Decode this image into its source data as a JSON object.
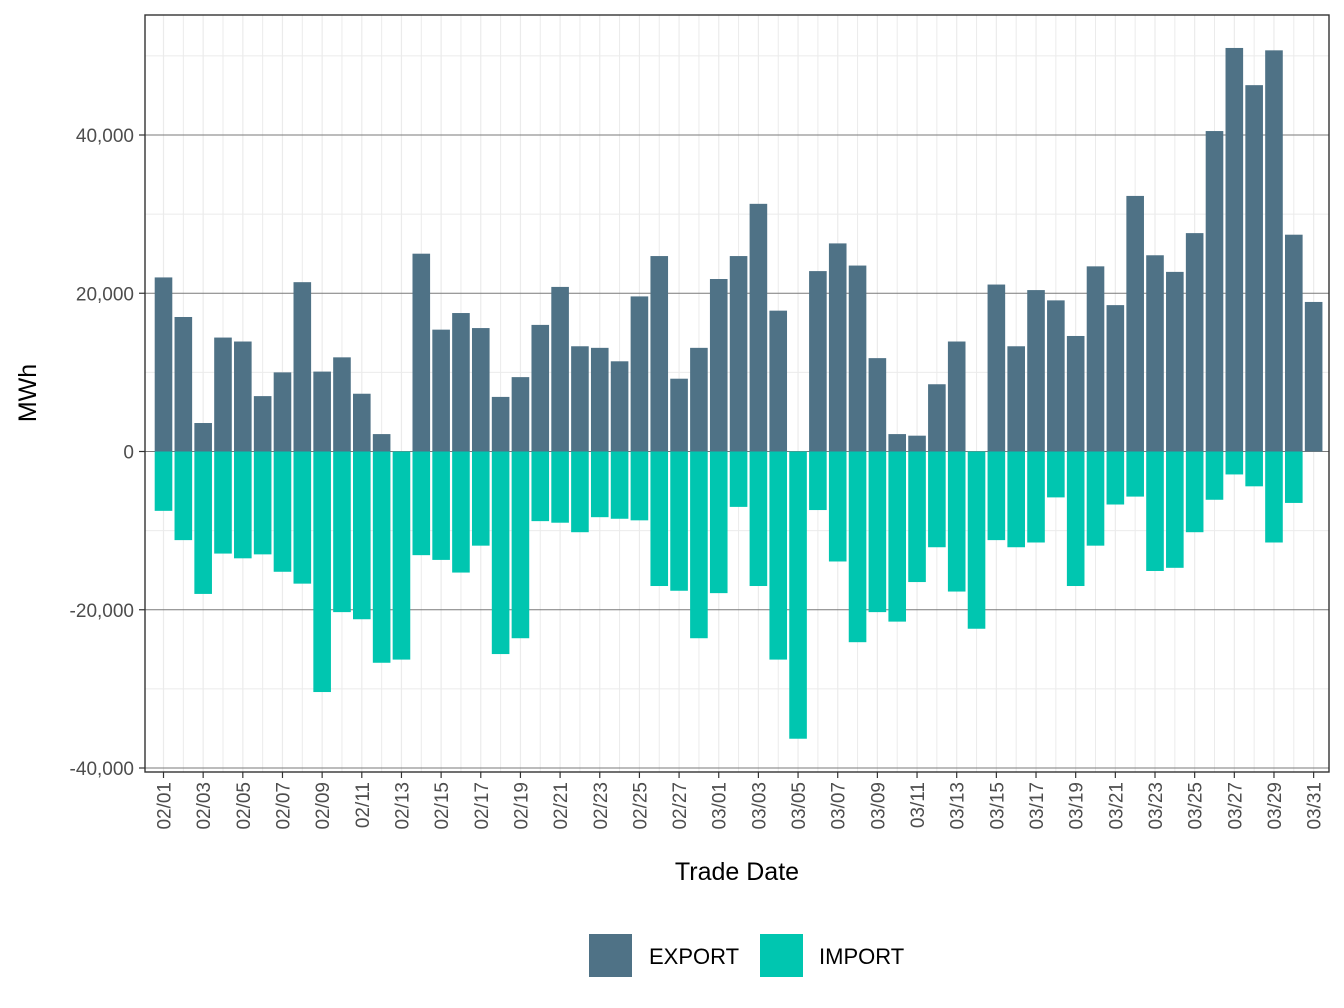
{
  "chart_data": {
    "type": "bar",
    "xlabel": "Trade Date",
    "ylabel": "MWh",
    "ylim": [
      -40000,
      50000
    ],
    "y_ticks": [
      -40000,
      -20000,
      0,
      20000,
      40000
    ],
    "y_tick_labels": [
      "-40,000",
      "-20,000",
      "0",
      "20,000",
      "40,000"
    ],
    "grid": true,
    "legend_position": "bottom",
    "categories": [
      "02/01",
      "02/02",
      "02/03",
      "02/04",
      "02/05",
      "02/06",
      "02/07",
      "02/08",
      "02/09",
      "02/10",
      "02/11",
      "02/12",
      "02/13",
      "02/14",
      "02/15",
      "02/16",
      "02/17",
      "02/18",
      "02/19",
      "02/20",
      "02/21",
      "02/22",
      "02/23",
      "02/24",
      "02/25",
      "02/26",
      "02/27",
      "02/28",
      "03/01",
      "03/02",
      "03/03",
      "03/04",
      "03/05",
      "03/06",
      "03/07",
      "03/08",
      "03/09",
      "03/10",
      "03/11",
      "03/12",
      "03/13",
      "03/14",
      "03/15",
      "03/16",
      "03/17",
      "03/18",
      "03/19",
      "03/20",
      "03/21",
      "03/22",
      "03/23",
      "03/24",
      "03/25",
      "03/26",
      "03/27",
      "03/28",
      "03/29",
      "03/30",
      "03/31"
    ],
    "x_tick_labels": [
      "02/01",
      "02/03",
      "02/05",
      "02/07",
      "02/09",
      "02/11",
      "02/13",
      "02/15",
      "02/17",
      "02/19",
      "02/21",
      "02/23",
      "02/25",
      "02/27",
      "03/01",
      "03/03",
      "03/05",
      "03/07",
      "03/09",
      "03/11",
      "03/13",
      "03/15",
      "03/17",
      "03/19",
      "03/21",
      "03/23",
      "03/25",
      "03/27",
      "03/29",
      "03/31"
    ],
    "series": [
      {
        "name": "EXPORT",
        "color": "#4f7286",
        "values": [
          22000,
          17000,
          3600,
          14400,
          13900,
          7000,
          10000,
          21400,
          10100,
          11900,
          7300,
          2200,
          0,
          25000,
          15400,
          17500,
          15600,
          6900,
          9400,
          16000,
          20800,
          13300,
          13100,
          11400,
          19600,
          24700,
          9200,
          13100,
          21800,
          24700,
          31300,
          17800,
          0,
          22800,
          26300,
          23500,
          11800,
          2200,
          2000,
          8500,
          13900,
          0,
          21100,
          13300,
          20400,
          19100,
          14600,
          23400,
          18500,
          32300,
          24800,
          22700,
          27600,
          40500,
          51000,
          46300,
          50700,
          27400,
          18900
        ]
      },
      {
        "name": "IMPORT",
        "color": "#00c6b0",
        "values": [
          -7500,
          -11200,
          -18000,
          -12900,
          -13500,
          -13000,
          -15200,
          -16700,
          -30400,
          -20300,
          -21200,
          -26700,
          -26300,
          -13100,
          -13700,
          -15300,
          -11900,
          -25600,
          -23600,
          -8800,
          -9000,
          -10200,
          -8300,
          -8500,
          -8700,
          -17000,
          -17600,
          -23600,
          -17900,
          -7000,
          -17000,
          -26300,
          -36300,
          -7400,
          -13900,
          -24100,
          -20300,
          -21500,
          -16500,
          -12100,
          -17700,
          -22400,
          -11200,
          -12100,
          -11500,
          -5800,
          -17000,
          -11900,
          -6700,
          -5700,
          -15100,
          -14700,
          -10200,
          -6100,
          -2900,
          -4400,
          -11500,
          -6500,
          0
        ]
      }
    ]
  }
}
